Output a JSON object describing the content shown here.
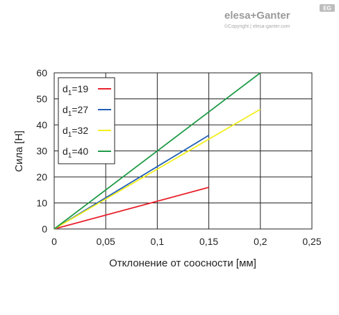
{
  "brand": {
    "logo_text": "elesa+Ganter",
    "badge": "EG",
    "copyright": "©Copyright | elesa-ganter.com"
  },
  "chart_data": {
    "type": "line",
    "xlabel": "Отклонение от соосности [мм]",
    "ylabel": "Сила [Н]",
    "xlim": [
      0,
      0.25
    ],
    "ylim": [
      0,
      60
    ],
    "x_ticks": [
      "0",
      "0,05",
      "0,1",
      "0,15",
      "0,2",
      "0,25"
    ],
    "y_ticks": [
      "0",
      "10",
      "20",
      "30",
      "40",
      "50",
      "60"
    ],
    "grid": true,
    "legend_position": "top-left",
    "series": [
      {
        "name": "d1=19",
        "label_base": "d",
        "label_sub": "1",
        "label_rest": "=19",
        "color": "#e8202a",
        "points": [
          [
            0,
            0
          ],
          [
            0.15,
            16
          ]
        ]
      },
      {
        "name": "d1=27",
        "label_base": "d",
        "label_sub": "1",
        "label_rest": "=27",
        "color": "#1f5fb5",
        "points": [
          [
            0,
            0
          ],
          [
            0.15,
            36
          ]
        ]
      },
      {
        "name": "d1=32",
        "label_base": "d",
        "label_sub": "1",
        "label_rest": "=32",
        "color": "#f2ee1a",
        "points": [
          [
            0,
            0
          ],
          [
            0.2,
            46
          ]
        ]
      },
      {
        "name": "d1=40",
        "label_base": "d",
        "label_sub": "1",
        "label_rest": "=40",
        "color": "#1e9a46",
        "points": [
          [
            0,
            0
          ],
          [
            0.2,
            60
          ]
        ]
      }
    ]
  }
}
